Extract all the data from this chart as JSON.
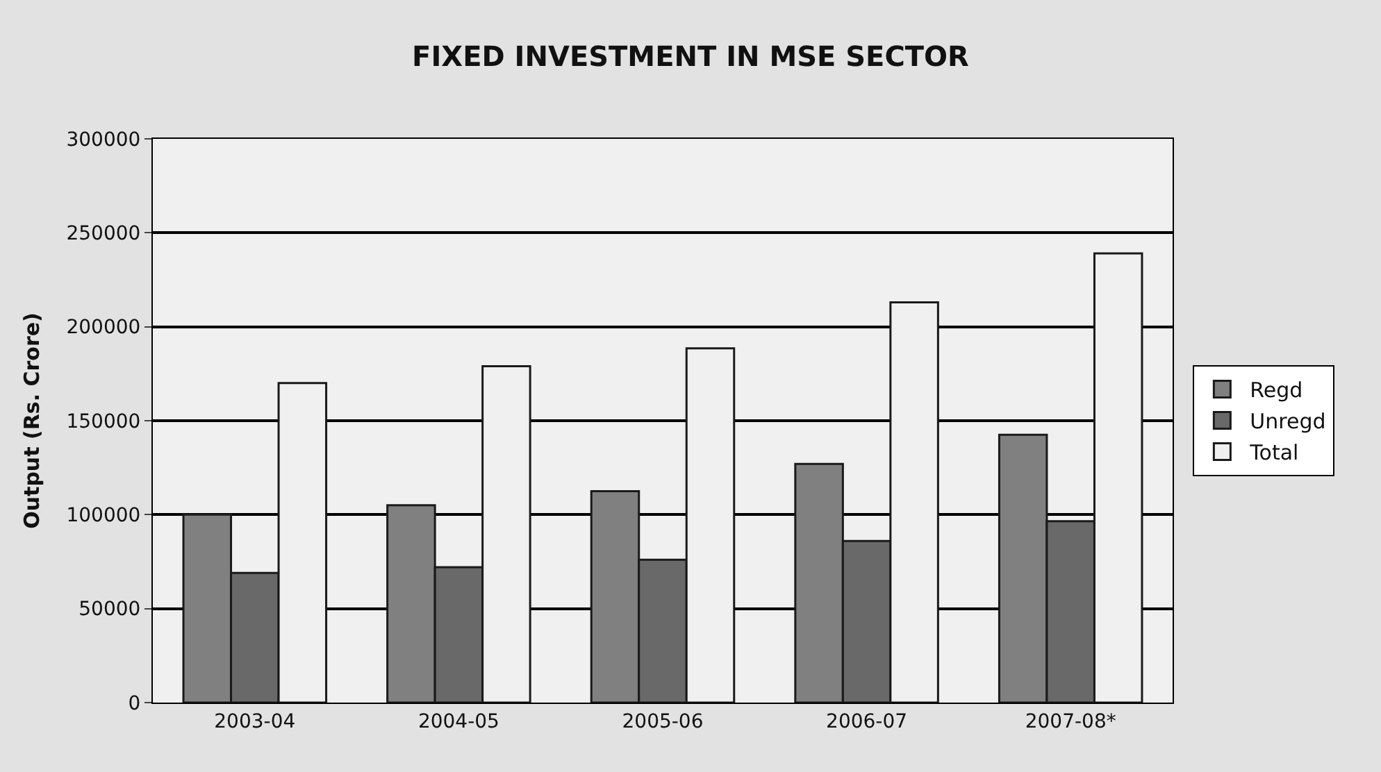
{
  "chart_data": {
    "type": "bar",
    "title": "FIXED INVESTMENT IN MSE SECTOR",
    "ylabel": "Output (Rs. Crore)",
    "categories": [
      "2003-04",
      "2004-05",
      "2005-06",
      "2006-07",
      "2007-08*"
    ],
    "series": [
      {
        "name": "Regd",
        "color": "#808080",
        "values": [
          100000,
          105000,
          112500,
          127000,
          142500
        ]
      },
      {
        "name": "Unregd",
        "color": "#696969",
        "values": [
          69000,
          72000,
          76000,
          86000,
          96500
        ]
      },
      {
        "name": "Total",
        "color": "#f0f0f0",
        "values": [
          170000,
          179000,
          188500,
          213000,
          239000
        ]
      }
    ],
    "ylim": [
      0,
      300000
    ],
    "yticks": [
      0,
      50000,
      100000,
      150000,
      200000,
      250000,
      300000
    ],
    "grid": "y",
    "legend": "right"
  }
}
